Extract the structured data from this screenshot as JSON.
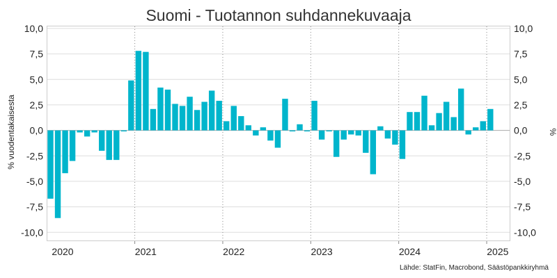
{
  "chart_data": {
    "type": "bar",
    "title": "Suomi - Tuotannon suhdannekuvaaja",
    "ylabel_left": "% vuodentakaisesta",
    "ylabel_right": "%",
    "source": "Lähde: StatFin, Macrobond, Säästöpankkiryhmä",
    "ylim": [
      -10.8,
      10.2
    ],
    "yticks": [
      "10,0",
      "7,5",
      "5,0",
      "2,5",
      "0,0",
      "-2,5",
      "-5,0",
      "-7,5",
      "-10,0"
    ],
    "ytick_values": [
      10,
      7.5,
      5,
      2.5,
      0,
      -2.5,
      -5,
      -7.5,
      -10
    ],
    "xticks": [
      "2020",
      "2021",
      "2022",
      "2023",
      "2024",
      "2025"
    ],
    "xtick_months_from_start": [
      0,
      12,
      24,
      36,
      48,
      60
    ],
    "month_start": "2020-01",
    "bar_color": "#00b5cc",
    "grid": true,
    "values": [
      -6.7,
      -8.6,
      -4.2,
      -3.0,
      -0.2,
      -0.6,
      -0.2,
      -2.0,
      -2.9,
      -2.9,
      -0.1,
      4.9,
      7.8,
      7.7,
      2.1,
      4.2,
      4.0,
      2.6,
      2.4,
      3.3,
      2.0,
      2.8,
      3.9,
      2.9,
      0.9,
      2.4,
      1.4,
      0.5,
      -0.5,
      0.3,
      -1.0,
      -1.7,
      3.1,
      -0.1,
      0.6,
      -0.1,
      2.9,
      -0.9,
      -0.1,
      -2.6,
      -0.9,
      -0.4,
      -0.5,
      -2.2,
      -4.3,
      0.4,
      -0.8,
      -1.4,
      -2.8,
      1.8,
      1.8,
      3.4,
      0.5,
      1.7,
      2.8,
      1.3,
      4.1,
      -0.4,
      0.3,
      0.9,
      2.1
    ]
  }
}
